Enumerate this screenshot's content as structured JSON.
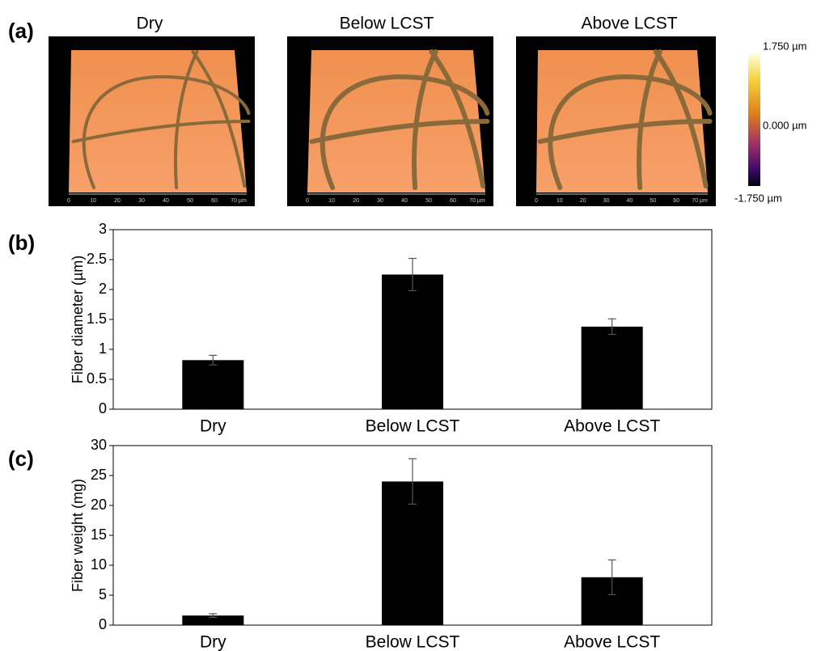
{
  "panel_a": {
    "label": "(a)",
    "images": [
      {
        "title": "Dry"
      },
      {
        "title": "Below  LCST"
      },
      {
        "title": "Above  LCST"
      }
    ],
    "image_xticks": [
      "0",
      "10",
      "20",
      "30",
      "40",
      "50",
      "60",
      "70 µm"
    ],
    "colorbar_labels": [
      "1.750 µm",
      "0.000 µm",
      "-1.750 µm"
    ]
  },
  "chart_data": [
    {
      "type": "bar",
      "panel_label": "(b)",
      "ylabel": "Fiber diameter (µm)",
      "categories": [
        "Dry",
        "Below  LCST",
        "Above  LCST"
      ],
      "values": [
        0.82,
        2.25,
        1.38
      ],
      "errors": [
        0.08,
        0.27,
        0.13
      ],
      "color": "#000000",
      "ylim": [
        0,
        3
      ],
      "yticks": [
        0,
        0.5,
        1,
        1.5,
        2,
        2.5,
        3
      ],
      "grid": false
    },
    {
      "type": "bar",
      "panel_label": "(c)",
      "ylabel": "Fiber weight (mg)",
      "categories": [
        "Dry",
        "Below  LCST",
        "Above  LCST"
      ],
      "values": [
        1.6,
        24,
        8
      ],
      "errors": [
        0.3,
        3.8,
        2.9
      ],
      "color": "#000000",
      "ylim": [
        0,
        30
      ],
      "yticks": [
        0,
        5,
        10,
        15,
        20,
        25,
        30
      ],
      "grid": false
    }
  ]
}
